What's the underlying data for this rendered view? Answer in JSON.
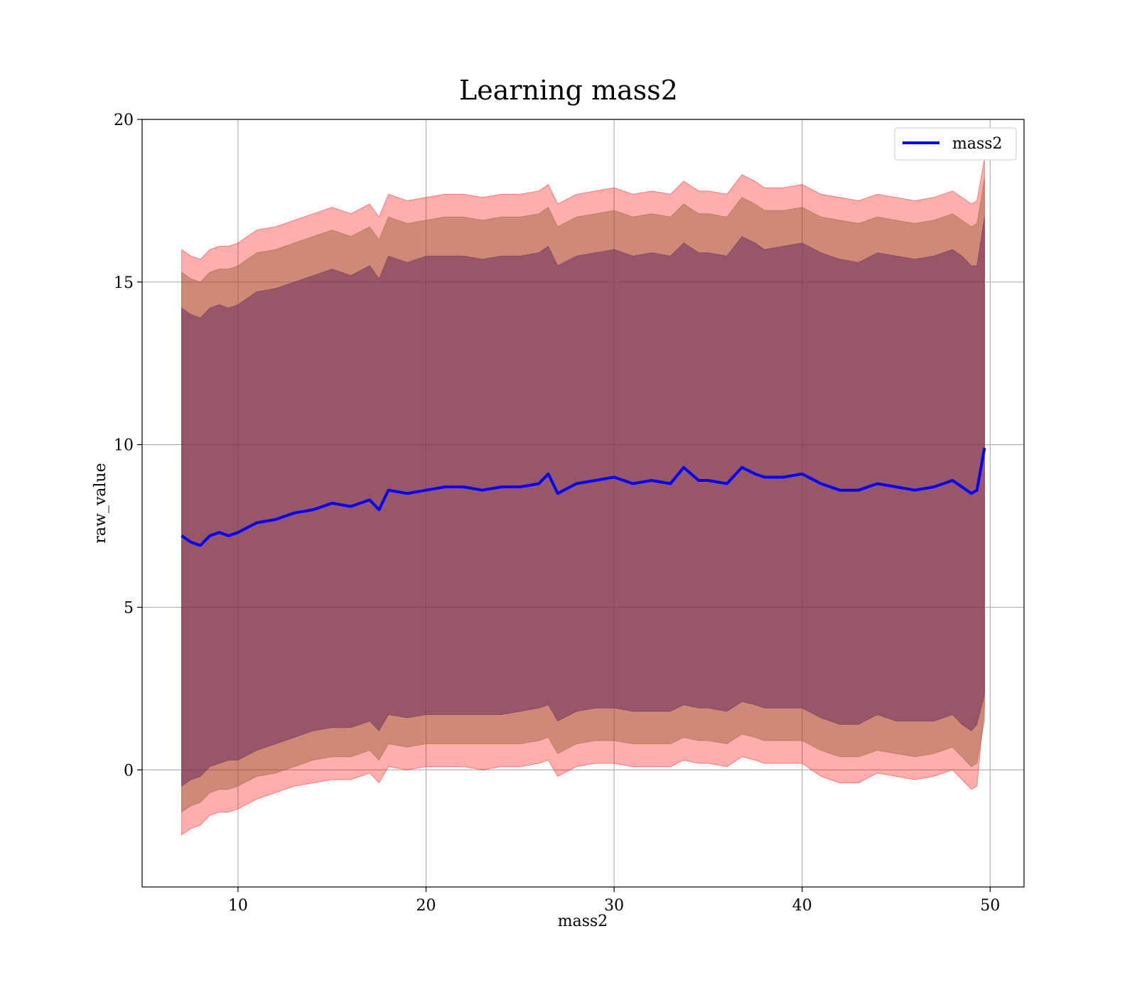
{
  "chart_data": {
    "type": "line",
    "title": "Learning mass2",
    "xlabel": "mass2",
    "ylabel": "raw_value",
    "xlim": [
      4.9,
      51.8
    ],
    "ylim": [
      -3.6,
      20
    ],
    "xticks": [
      10,
      20,
      30,
      40,
      50
    ],
    "yticks": [
      0,
      5,
      10,
      15,
      20
    ],
    "grid": true,
    "legend": {
      "position": "top-right",
      "entries": [
        "mass2"
      ]
    },
    "colors": {
      "line": "#0000ff",
      "band_outer": "#ff0000",
      "band_mid": "#8b5a2b",
      "band_inner": "#6b2d5c",
      "grid": "#b0b0b0"
    },
    "series": [
      {
        "name": "mass2",
        "x": [
          7.0,
          7.5,
          8.0,
          8.5,
          9.0,
          9.5,
          10.0,
          11.0,
          12.0,
          13.0,
          14.0,
          15.0,
          16.0,
          17.0,
          17.5,
          18.0,
          19.0,
          20.0,
          21.0,
          22.0,
          23.0,
          24.0,
          25.0,
          26.0,
          26.5,
          27.0,
          28.0,
          29.0,
          30.0,
          31.0,
          32.0,
          33.0,
          33.7,
          34.5,
          35.0,
          36.0,
          36.8,
          37.5,
          38.0,
          39.0,
          40.0,
          41.0,
          42.0,
          43.0,
          44.0,
          45.0,
          46.0,
          47.0,
          48.0,
          48.5,
          49.0,
          49.3,
          49.7
        ],
        "y": [
          7.2,
          7.0,
          6.9,
          7.2,
          7.3,
          7.2,
          7.3,
          7.6,
          7.7,
          7.9,
          8.0,
          8.2,
          8.1,
          8.3,
          8.0,
          8.6,
          8.5,
          8.6,
          8.7,
          8.7,
          8.6,
          8.7,
          8.7,
          8.8,
          9.1,
          8.5,
          8.8,
          8.9,
          9.0,
          8.8,
          8.9,
          8.8,
          9.3,
          8.9,
          8.9,
          8.8,
          9.3,
          9.1,
          9.0,
          9.0,
          9.1,
          8.8,
          8.6,
          8.6,
          8.8,
          8.7,
          8.6,
          8.7,
          8.9,
          8.7,
          8.5,
          8.6,
          9.9
        ],
        "band_inner_low": [
          -0.5,
          -0.3,
          -0.2,
          0.1,
          0.2,
          0.3,
          0.3,
          0.6,
          0.8,
          1.0,
          1.2,
          1.3,
          1.3,
          1.5,
          1.2,
          1.7,
          1.6,
          1.7,
          1.7,
          1.7,
          1.7,
          1.7,
          1.8,
          1.9,
          2.0,
          1.5,
          1.8,
          1.9,
          1.9,
          1.8,
          1.8,
          1.8,
          2.0,
          1.9,
          1.9,
          1.8,
          2.1,
          2.0,
          1.9,
          1.9,
          1.9,
          1.6,
          1.4,
          1.4,
          1.7,
          1.5,
          1.5,
          1.5,
          1.7,
          1.4,
          1.2,
          1.4,
          2.3
        ],
        "band_inner_high": [
          14.2,
          14.0,
          13.9,
          14.2,
          14.3,
          14.2,
          14.3,
          14.7,
          14.8,
          15.0,
          15.2,
          15.4,
          15.2,
          15.5,
          15.1,
          15.8,
          15.6,
          15.8,
          15.8,
          15.8,
          15.7,
          15.8,
          15.8,
          15.9,
          16.1,
          15.5,
          15.8,
          15.9,
          16.0,
          15.8,
          15.9,
          15.8,
          16.2,
          15.9,
          15.9,
          15.8,
          16.4,
          16.2,
          16.0,
          16.1,
          16.2,
          15.9,
          15.7,
          15.6,
          15.9,
          15.8,
          15.7,
          15.8,
          16.0,
          15.8,
          15.5,
          15.5,
          17.0
        ],
        "band_mid_low": [
          -1.3,
          -1.1,
          -1.0,
          -0.7,
          -0.6,
          -0.6,
          -0.5,
          -0.2,
          -0.1,
          0.1,
          0.3,
          0.4,
          0.4,
          0.6,
          0.3,
          0.8,
          0.7,
          0.8,
          0.8,
          0.8,
          0.8,
          0.8,
          0.8,
          0.9,
          1.0,
          0.5,
          0.8,
          0.9,
          0.9,
          0.8,
          0.8,
          0.8,
          1.0,
          0.9,
          0.9,
          0.8,
          1.1,
          1.0,
          0.9,
          0.9,
          0.9,
          0.6,
          0.4,
          0.4,
          0.6,
          0.5,
          0.4,
          0.5,
          0.7,
          0.4,
          0.1,
          0.2,
          1.5
        ],
        "band_mid_high": [
          15.3,
          15.1,
          15.0,
          15.3,
          15.4,
          15.4,
          15.5,
          15.9,
          16.0,
          16.2,
          16.4,
          16.6,
          16.4,
          16.7,
          16.3,
          17.0,
          16.8,
          16.9,
          17.0,
          17.0,
          16.9,
          17.0,
          17.0,
          17.1,
          17.3,
          16.7,
          17.0,
          17.1,
          17.2,
          17.0,
          17.1,
          17.0,
          17.4,
          17.1,
          17.1,
          17.0,
          17.6,
          17.4,
          17.2,
          17.2,
          17.3,
          17.0,
          16.9,
          16.8,
          17.0,
          16.9,
          16.8,
          16.9,
          17.1,
          16.9,
          16.7,
          16.8,
          18.2
        ],
        "band_outer_low": [
          -2.0,
          -1.8,
          -1.7,
          -1.4,
          -1.3,
          -1.3,
          -1.2,
          -0.9,
          -0.7,
          -0.5,
          -0.4,
          -0.3,
          -0.3,
          -0.1,
          -0.4,
          0.1,
          0.0,
          0.1,
          0.1,
          0.1,
          0.0,
          0.1,
          0.1,
          0.2,
          0.3,
          -0.2,
          0.1,
          0.2,
          0.2,
          0.1,
          0.1,
          0.1,
          0.3,
          0.2,
          0.2,
          0.1,
          0.4,
          0.3,
          0.2,
          0.2,
          0.2,
          -0.2,
          -0.4,
          -0.4,
          -0.1,
          -0.2,
          -0.3,
          -0.2,
          0.0,
          -0.3,
          -0.6,
          -0.5,
          2.0
        ],
        "band_outer_high": [
          16.0,
          15.8,
          15.7,
          16.0,
          16.1,
          16.1,
          16.2,
          16.6,
          16.7,
          16.9,
          17.1,
          17.3,
          17.1,
          17.4,
          17.0,
          17.7,
          17.5,
          17.6,
          17.7,
          17.7,
          17.6,
          17.7,
          17.7,
          17.8,
          18.0,
          17.4,
          17.7,
          17.8,
          17.9,
          17.7,
          17.8,
          17.7,
          18.1,
          17.8,
          17.8,
          17.7,
          18.3,
          18.1,
          17.9,
          17.9,
          18.0,
          17.7,
          17.6,
          17.5,
          17.7,
          17.6,
          17.5,
          17.6,
          17.8,
          17.6,
          17.4,
          17.5,
          18.8
        ]
      }
    ]
  }
}
